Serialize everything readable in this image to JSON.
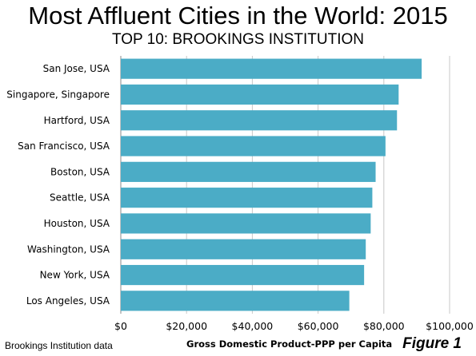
{
  "chart_data": {
    "type": "bar",
    "orientation": "horizontal",
    "title": "Most Affluent Cities in the World: 2015",
    "subtitle": "TOP 10: BROOKINGS INSTITUTION",
    "xlabel": "Gross Domestic Product-PPP per Capita",
    "ylabel": "",
    "categories": [
      "San Jose, USA",
      "Singapore, Singapore",
      "Hartford, USA",
      "San Francisco, USA",
      "Boston, USA",
      "Seattle, USA",
      "Houston, USA",
      "Washington, USA",
      "New York, USA",
      "Los Angeles, USA"
    ],
    "values": [
      91500,
      84500,
      84000,
      80500,
      77500,
      76500,
      76000,
      74500,
      74000,
      69500
    ],
    "xlim": [
      0,
      100000
    ],
    "xticks": [
      0,
      20000,
      40000,
      60000,
      80000,
      100000
    ],
    "xtick_labels": [
      "$0",
      "$20,000",
      "$40,000",
      "$60,000",
      "$80,000",
      "$100,000"
    ],
    "grid": true,
    "legend": "none",
    "bar_color": "#4BACC6",
    "source": "Brookings Institution  data",
    "figure_label": "Figure 1"
  }
}
